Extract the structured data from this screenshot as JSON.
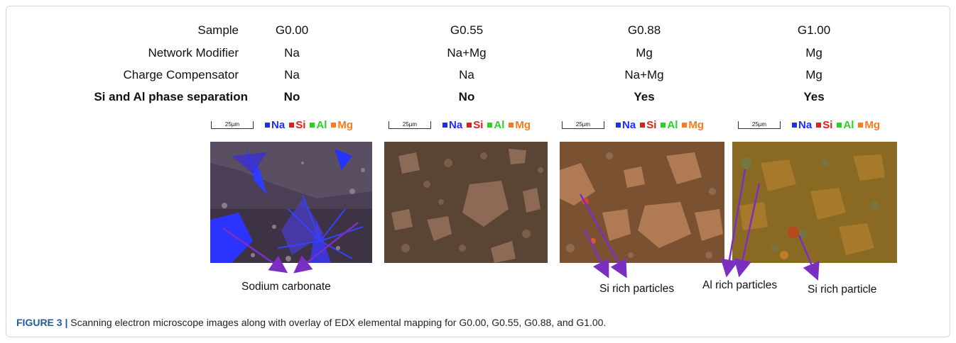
{
  "table": {
    "row_labels": [
      "Sample",
      "Network Modifier",
      "Charge Compensator",
      "Si and Al phase separation"
    ],
    "columns": [
      {
        "sample": "G0.00",
        "modifier": "Na",
        "compensator": "Na",
        "separation": "No"
      },
      {
        "sample": "G0.55",
        "modifier": "Na+Mg",
        "compensator": "Na",
        "separation": "No"
      },
      {
        "sample": "G0.88",
        "modifier": "Mg",
        "compensator": "Na+Mg",
        "separation": "Yes"
      },
      {
        "sample": "G1.00",
        "modifier": "Mg",
        "compensator": "Mg",
        "separation": "Yes"
      }
    ]
  },
  "legend": {
    "scale": "25µm",
    "items": [
      {
        "label": "Na",
        "color": "#1d2cff"
      },
      {
        "label": "Si",
        "color": "#e81b1b"
      },
      {
        "label": "Al",
        "color": "#22d622"
      },
      {
        "label": "Mg",
        "color": "#ff7a1a"
      }
    ]
  },
  "callouts": {
    "sodium_carbonate": "Sodium carbonate",
    "si_rich_particles": "Si rich particles",
    "al_rich_particles": "Al rich particles",
    "si_rich_particle": "Si rich particle"
  },
  "arrow_color": "#7b2fc2",
  "caption": {
    "label": "FIGURE 3 |",
    "text": " Scanning electron microscope images along with overlay of EDX elemental mapping for G0.00, G0.55, G0.88, and G1.00."
  }
}
